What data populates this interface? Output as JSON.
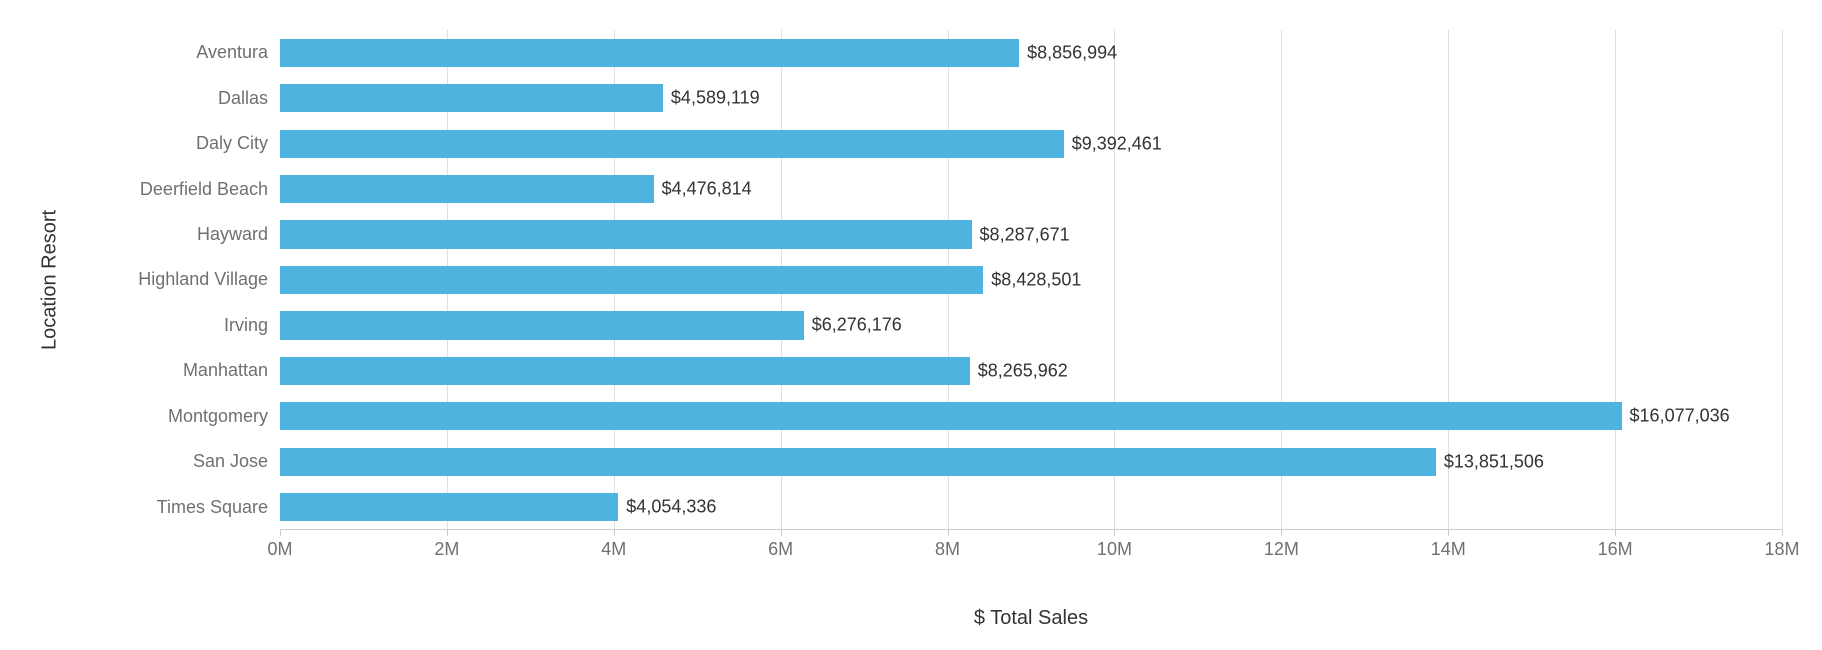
{
  "chart": {
    "type": "bar-horizontal",
    "y_axis_title": "Location Resort",
    "x_axis_title": "$ Total Sales",
    "background_color": "#ffffff",
    "grid_color": "#e0e0e0",
    "axis_color": "#cccccc",
    "tick_label_color": "#707070",
    "axis_title_color": "#333333",
    "bar_color": "#4fb3e0",
    "bar_label_color": "#333333",
    "x_axis": {
      "min": 0,
      "max": 18000000,
      "tick_step": 2000000,
      "ticks": [
        {
          "value": 0,
          "label": "0M"
        },
        {
          "value": 2000000,
          "label": "2M"
        },
        {
          "value": 4000000,
          "label": "4M"
        },
        {
          "value": 6000000,
          "label": "6M"
        },
        {
          "value": 8000000,
          "label": "8M"
        },
        {
          "value": 10000000,
          "label": "10M"
        },
        {
          "value": 12000000,
          "label": "12M"
        },
        {
          "value": 14000000,
          "label": "14M"
        },
        {
          "value": 16000000,
          "label": "16M"
        },
        {
          "value": 18000000,
          "label": "18M"
        }
      ]
    },
    "categories": [
      {
        "name": "Aventura",
        "value": 8856994,
        "label": "$8,856,994"
      },
      {
        "name": "Dallas",
        "value": 4589119,
        "label": "$4,589,119"
      },
      {
        "name": "Daly City",
        "value": 9392461,
        "label": "$9,392,461"
      },
      {
        "name": "Deerfield Beach",
        "value": 4476814,
        "label": "$4,476,814"
      },
      {
        "name": "Hayward",
        "value": 8287671,
        "label": "$8,287,671"
      },
      {
        "name": "Highland Village",
        "value": 8428501,
        "label": "$8,428,501"
      },
      {
        "name": "Irving",
        "value": 6276176,
        "label": "$6,276,176"
      },
      {
        "name": "Manhattan",
        "value": 8265962,
        "label": "$8,265,962"
      },
      {
        "name": "Montgomery",
        "value": 16077036,
        "label": "$16,077,036"
      },
      {
        "name": "San Jose",
        "value": 13851506,
        "label": "$13,851,506"
      },
      {
        "name": "Times Square",
        "value": 4054336,
        "label": "$4,054,336"
      }
    ],
    "font_sizes": {
      "axis_title": 20,
      "tick_label": 18,
      "bar_label": 18
    }
  }
}
